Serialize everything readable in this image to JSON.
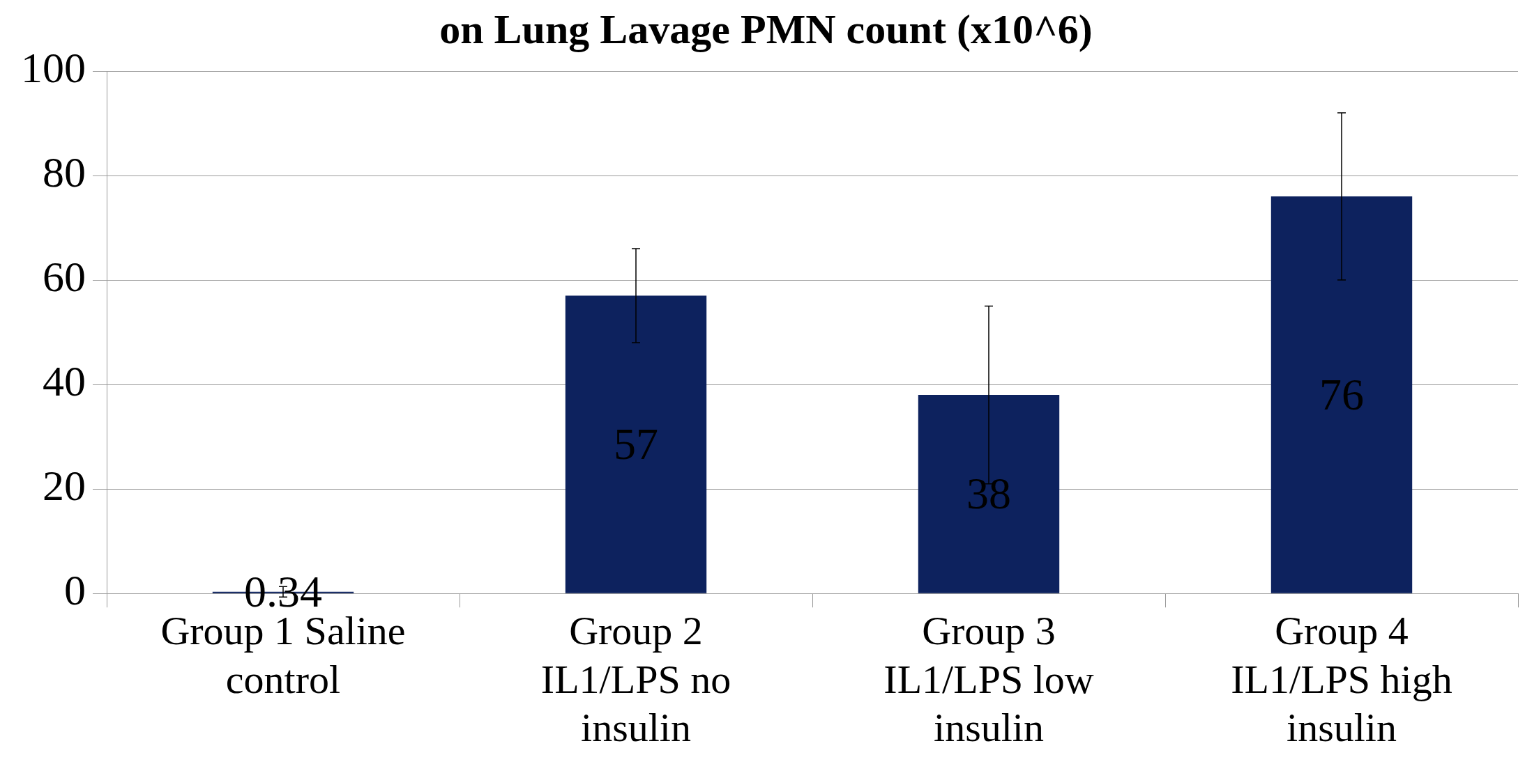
{
  "chart_data": {
    "type": "bar",
    "title": "on Lung Lavage PMN count (x10^6)",
    "categories": [
      "Group 1 Saline control",
      "Group 2 IL1/LPS no insulin",
      "Group 3 IL1/LPS low insulin",
      "Group 4 IL1/LPS high insulin"
    ],
    "values": [
      0.34,
      57,
      38,
      76
    ],
    "errors": [
      1,
      9,
      17,
      16
    ],
    "color": "#0d225e",
    "ylim": [
      0,
      100
    ],
    "yticks": [
      0,
      20,
      40,
      60,
      80,
      100
    ],
    "grid": "y",
    "legend": false,
    "data_labels": true
  }
}
